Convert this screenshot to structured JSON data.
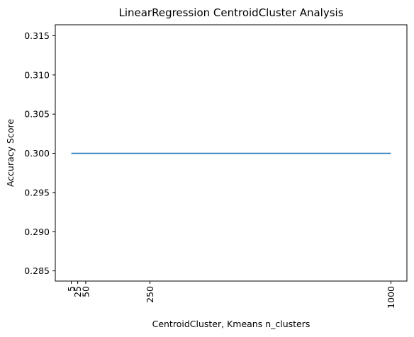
{
  "chart_data": {
    "type": "line",
    "title": "LinearRegression CentroidCluster Analysis",
    "xlabel": "CentroidCluster, Kmeans n_clusters",
    "ylabel": "Accuracy Score",
    "x": [
      5,
      25,
      50,
      250,
      1000
    ],
    "xticks": [
      "5",
      "25",
      "50",
      "250",
      "1000"
    ],
    "series": [
      {
        "values": [
          0.3,
          0.3,
          0.3,
          0.3,
          0.3
        ],
        "color": "#1f77b4"
      }
    ],
    "yticks": [
      "0.285",
      "0.290",
      "0.295",
      "0.300",
      "0.305",
      "0.310",
      "0.315"
    ],
    "ytick_values": [
      0.285,
      0.29,
      0.295,
      0.3,
      0.305,
      0.31,
      0.315
    ],
    "xlim": [
      -44.75,
      1049.75
    ],
    "ylim": [
      0.2837,
      0.3164
    ],
    "grid": false,
    "xtick_rotation": "vertical"
  }
}
